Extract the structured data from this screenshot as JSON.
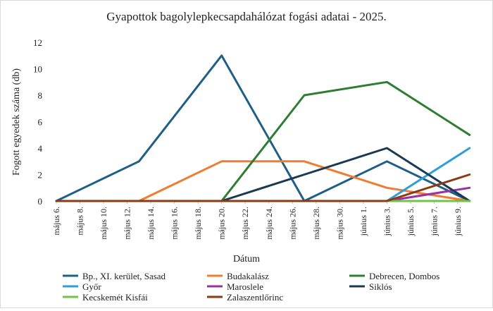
{
  "chart_data": {
    "type": "line",
    "title": "Gyapottok bagolylepkecsapdahálózat fogási adatai - 2025.",
    "xlabel": "Dátum",
    "ylabel": "Fogott egyedek száma (db)",
    "ylim": [
      0,
      12
    ],
    "yticks": [
      0,
      2,
      4,
      6,
      8,
      10,
      12
    ],
    "grid": false,
    "legend_position": "bottom",
    "categories": [
      "május 6.",
      "május 8.",
      "május 10.",
      "május 12.",
      "május 14.",
      "május 16.",
      "május 18.",
      "május 20.",
      "május 22.",
      "május 24.",
      "május 26.",
      "május 28.",
      "május 30.",
      "június 1.",
      "június 3.",
      "június 5.",
      "június 7.",
      "június 9."
    ],
    "series": [
      {
        "name": "Bp., XI. kerület, Sasad",
        "color": "#1f5f86",
        "points": [
          [
            0,
            0
          ],
          [
            3.5,
            3
          ],
          [
            7,
            11
          ],
          [
            10.5,
            0
          ],
          [
            14,
            3
          ],
          [
            17.5,
            0
          ]
        ]
      },
      {
        "name": "Budakalász",
        "color": "#ed7d31",
        "points": [
          [
            0,
            0
          ],
          [
            3.5,
            0
          ],
          [
            7,
            3
          ],
          [
            10.5,
            3
          ],
          [
            14,
            1
          ],
          [
            17.5,
            0
          ]
        ]
      },
      {
        "name": "Debrecen, Dombos",
        "color": "#2e7d32",
        "points": [
          [
            0,
            0
          ],
          [
            3.5,
            0
          ],
          [
            7,
            0
          ],
          [
            10.5,
            8
          ],
          [
            14,
            9
          ],
          [
            17.5,
            5
          ]
        ]
      },
      {
        "name": "Győr",
        "color": "#2e9fd6",
        "points": [
          [
            0,
            0
          ],
          [
            3.5,
            0
          ],
          [
            7,
            0
          ],
          [
            10.5,
            0
          ],
          [
            14,
            0
          ],
          [
            17.5,
            4
          ]
        ]
      },
      {
        "name": "Maroslele",
        "color": "#9b30a0",
        "points": [
          [
            0,
            0
          ],
          [
            3.5,
            0
          ],
          [
            7,
            0
          ],
          [
            10.5,
            0
          ],
          [
            14,
            0
          ],
          [
            17.5,
            1
          ]
        ]
      },
      {
        "name": "Siklós",
        "color": "#1b3a52",
        "points": [
          [
            0,
            0
          ],
          [
            3.5,
            0
          ],
          [
            7,
            0
          ],
          [
            10.5,
            2
          ],
          [
            14,
            4
          ],
          [
            17.5,
            0
          ]
        ]
      },
      {
        "name": "Kecskemét Kisfái",
        "color": "#70c443",
        "points": [
          [
            0,
            0
          ],
          [
            3.5,
            0
          ],
          [
            7,
            0
          ],
          [
            10.5,
            0
          ],
          [
            14,
            0
          ],
          [
            17.5,
            0
          ]
        ]
      },
      {
        "name": "Zalaszentlőrinc",
        "color": "#8b3a12",
        "points": [
          [
            0,
            0
          ],
          [
            3.5,
            0
          ],
          [
            7,
            0
          ],
          [
            10.5,
            0
          ],
          [
            14,
            0
          ],
          [
            17.5,
            2
          ]
        ]
      }
    ]
  }
}
